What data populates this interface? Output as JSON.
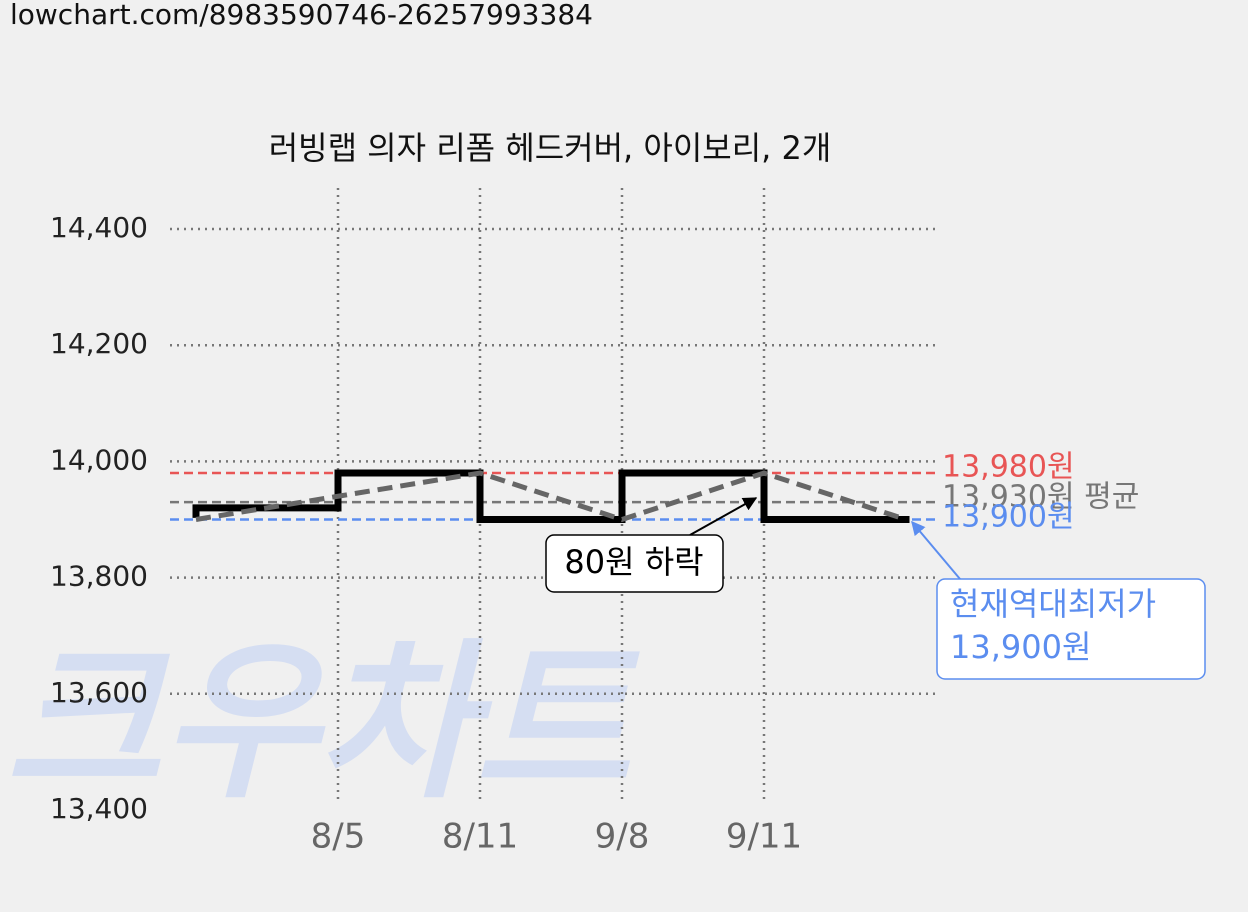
{
  "chart_data": {
    "type": "line",
    "header": "lowchart.com/8983590746-26257993384",
    "title": "러빙랩 의자 리폼 헤드커버, 아이보리, 2개",
    "watermark": "크우차트",
    "categories": [
      null,
      "8/5",
      "8/11",
      "9/8",
      "9/11",
      null
    ],
    "series": [
      {
        "color": "#000000",
        "step": true,
        "values": [
          13920,
          13980,
          13900,
          13980,
          13900,
          13900
        ]
      },
      {
        "color": "#666666",
        "dashed": true,
        "values": [
          13900,
          13940,
          13980,
          13900,
          13980,
          13900
        ]
      }
    ],
    "ylim": [
      13400,
      14400
    ],
    "yticks": [
      {
        "value": 13400,
        "label": "13,400"
      },
      {
        "value": 13600,
        "label": "13,600"
      },
      {
        "value": 13800,
        "label": "13,800"
      },
      {
        "value": 14000,
        "label": "14,000"
      },
      {
        "value": 14200,
        "label": "14,200"
      },
      {
        "value": 14400,
        "label": "14,400"
      }
    ],
    "grid": true,
    "reference_lines": [
      {
        "value": 13980,
        "label": "13,980원",
        "color": "#e85555"
      },
      {
        "value": 13930,
        "label": "13,930원 평균",
        "color": "#777777"
      },
      {
        "value": 13900,
        "label": "13,900원",
        "color": "#5b8def"
      }
    ],
    "annotations": [
      {
        "text": "80원 하락"
      },
      {
        "text": [
          "현재역대최저가",
          "13,900원"
        ]
      }
    ]
  }
}
